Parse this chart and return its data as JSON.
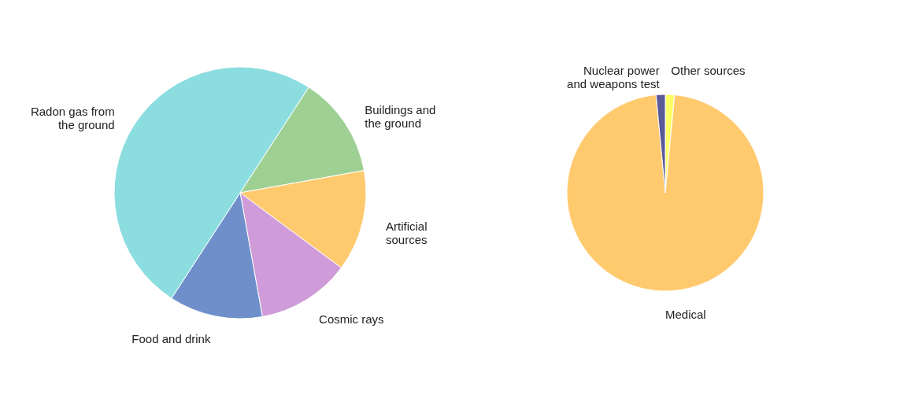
{
  "chart_data": [
    {
      "type": "pie",
      "categories": [
        "Buildings and the ground",
        "Artificial sources",
        "Cosmic rays",
        "Food and drink",
        "Radon gas from the ground"
      ],
      "values": [
        13,
        13,
        12,
        12,
        50
      ],
      "colors": [
        "#9fd093",
        "#ffca6e",
        "#cf9bd8",
        "#6e8fca",
        "#8cdde0"
      ],
      "legend": false
    },
    {
      "type": "pie",
      "categories": [
        "Other sources",
        "Medical",
        "Nuclear power and weapons test"
      ],
      "values": [
        1.5,
        97,
        1.5
      ],
      "colors": [
        "#ffff66",
        "#ffca6e",
        "#5a5a96"
      ],
      "legend": false
    }
  ]
}
